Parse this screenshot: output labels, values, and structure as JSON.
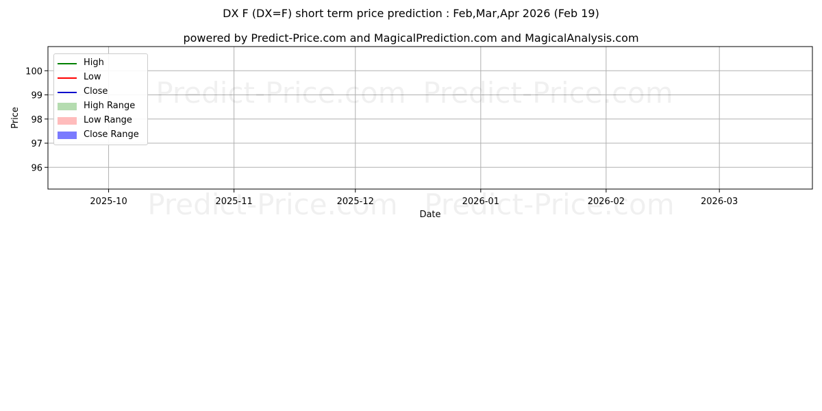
{
  "title": "DX F (DX=F) short term price prediction : Feb,Mar,Apr 2026 (Feb 19)",
  "subtitle": "powered by Predict-Price.com and MagicalPrediction.com and MagicalAnalysis.com",
  "watermark": [
    "Predict-Price.com",
    "Predict-Price.com",
    "Predict-Price.com",
    "Predict-Price.com"
  ],
  "chart_data": {
    "type": "line",
    "title": "DX F (DX=F) short term price prediction : Feb,Mar,Apr 2026 (Feb 19)",
    "xlabel": "Date",
    "ylabel": "Price",
    "x_range": [
      "2025-09-16",
      "2026-03-24"
    ],
    "ylim": [
      95.1,
      101.0
    ],
    "x_ticks": [
      "2025-10",
      "2025-11",
      "2025-12",
      "2026-01",
      "2026-02",
      "2026-03"
    ],
    "y_ticks": [
      96,
      97,
      98,
      99,
      100
    ],
    "grid": true,
    "legend": "top-left",
    "legend_entries": [
      {
        "label": "High",
        "color": "#008000",
        "kind": "line"
      },
      {
        "label": "Low",
        "color": "#ff0000",
        "kind": "line"
      },
      {
        "label": "Close",
        "color": "#0000cc",
        "kind": "line"
      },
      {
        "label": "High Range",
        "color": "#b5dcb0",
        "kind": "fill"
      },
      {
        "label": "Low Range",
        "color": "#ffbcbc",
        "kind": "fill"
      },
      {
        "label": "Close Range",
        "color": "#7a7afe",
        "kind": "fill"
      }
    ],
    "series": [
      {
        "name": "High",
        "color": "#008000",
        "points": []
      },
      {
        "name": "Low",
        "color": "#ff0000",
        "points": []
      },
      {
        "name": "Close",
        "color": "#0000cc",
        "points": []
      }
    ],
    "ranges": [
      {
        "name": "High Range",
        "color": "#b5dcb0",
        "points": []
      },
      {
        "name": "Low Range",
        "color": "#ffbcbc",
        "points": []
      },
      {
        "name": "Close Range",
        "color": "#7a7afe",
        "points": []
      }
    ]
  }
}
